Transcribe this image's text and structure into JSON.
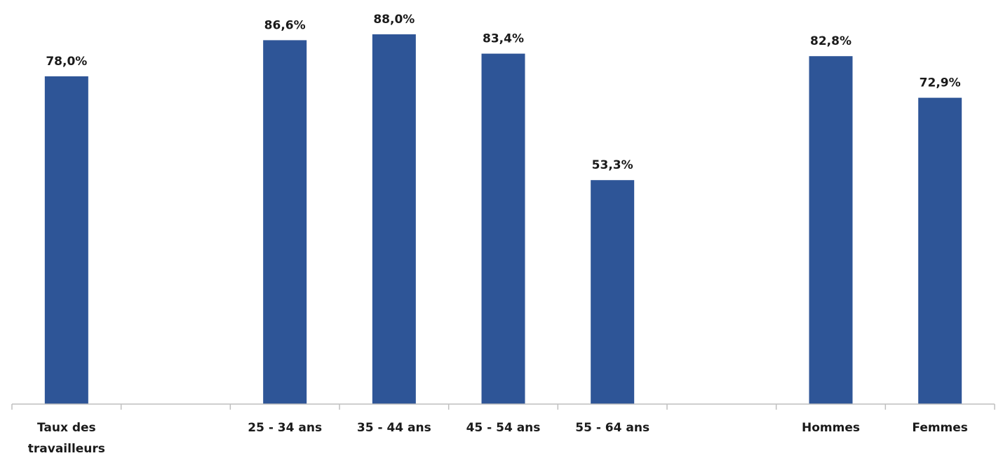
{
  "chart_data": {
    "type": "bar",
    "categories": [
      "Taux des travailleurs",
      "",
      "25 - 34 ans",
      "35 - 44 ans",
      "45 - 54 ans",
      "55 - 64 ans",
      "",
      "Hommes",
      "Femmes"
    ],
    "category_lines": [
      [
        "Taux des",
        "travailleurs"
      ],
      [],
      [
        "25 - 34 ans"
      ],
      [
        "35 - 44 ans"
      ],
      [
        "45 - 54 ans"
      ],
      [
        "55 - 64 ans"
      ],
      [],
      [
        "Hommes"
      ],
      [
        "Femmes"
      ]
    ],
    "values": [
      78.0,
      null,
      86.6,
      88.0,
      83.4,
      53.3,
      null,
      82.8,
      72.9
    ],
    "value_labels": [
      "78,0%",
      "",
      "86,6%",
      "88,0%",
      "83,4%",
      "53,3%",
      "",
      "82,8%",
      "72,9%"
    ],
    "ylim": [
      0,
      100
    ],
    "grid": false,
    "legend": "none",
    "bar_color": "#2e5597"
  }
}
